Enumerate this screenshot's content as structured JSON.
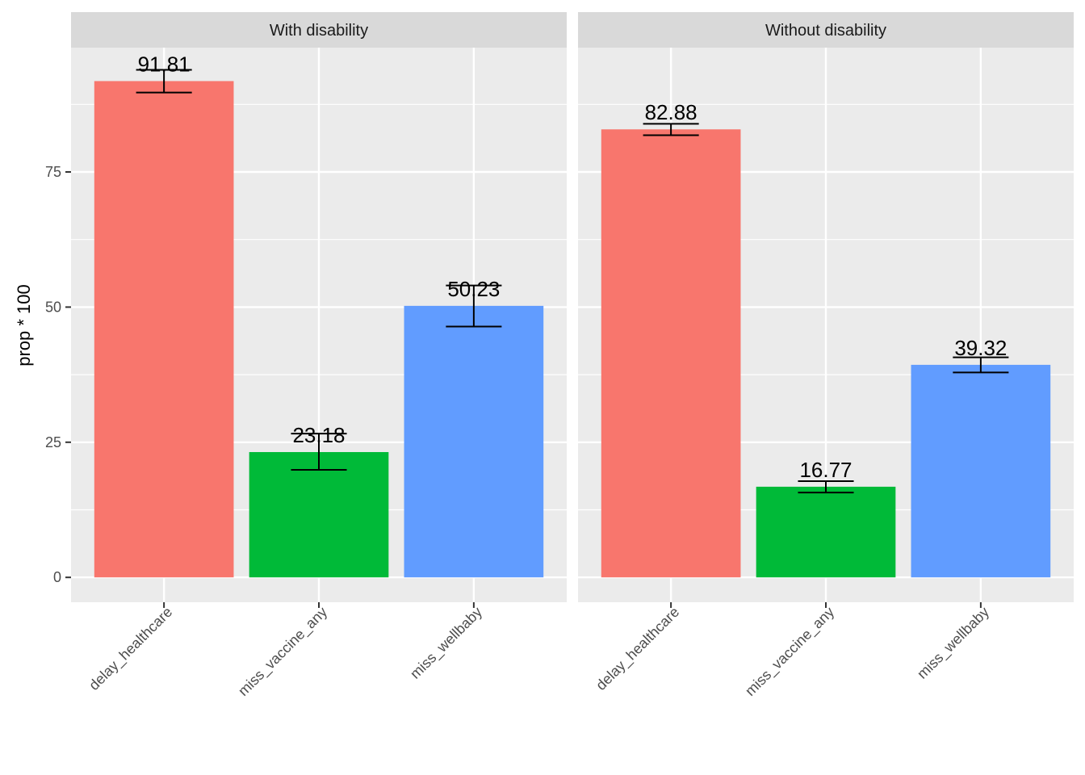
{
  "chart_data": {
    "type": "bar",
    "facet": "columns",
    "ylabel": "prop * 100",
    "xlabel": "",
    "ylim": [
      -4.6,
      98
    ],
    "yticks": [
      0,
      25,
      50,
      75
    ],
    "grid": true,
    "legend": "none",
    "categories": [
      "delay_healthcare",
      "miss_vaccine_any",
      "miss_wellbaby"
    ],
    "colors": {
      "delay_healthcare": "#F8766D",
      "miss_vaccine_any": "#00BA38",
      "miss_wellbaby": "#619CFF",
      "panel_bg": "#EBEBEB",
      "strip_bg": "#D9D9D9",
      "gridline": "#FFFFFF"
    },
    "panels": [
      {
        "title": "With disability",
        "values": [
          91.81,
          23.18,
          50.23
        ],
        "labels": [
          "91.81",
          "23.18",
          "50.23"
        ],
        "error_low": [
          89.7,
          19.9,
          46.4
        ],
        "error_high": [
          93.9,
          26.6,
          54.0
        ]
      },
      {
        "title": "Without disability",
        "values": [
          82.88,
          16.77,
          39.32
        ],
        "labels": [
          "82.88",
          "16.77",
          "39.32"
        ],
        "error_low": [
          81.8,
          15.7,
          37.9
        ],
        "error_high": [
          83.9,
          17.8,
          40.7
        ]
      }
    ]
  }
}
